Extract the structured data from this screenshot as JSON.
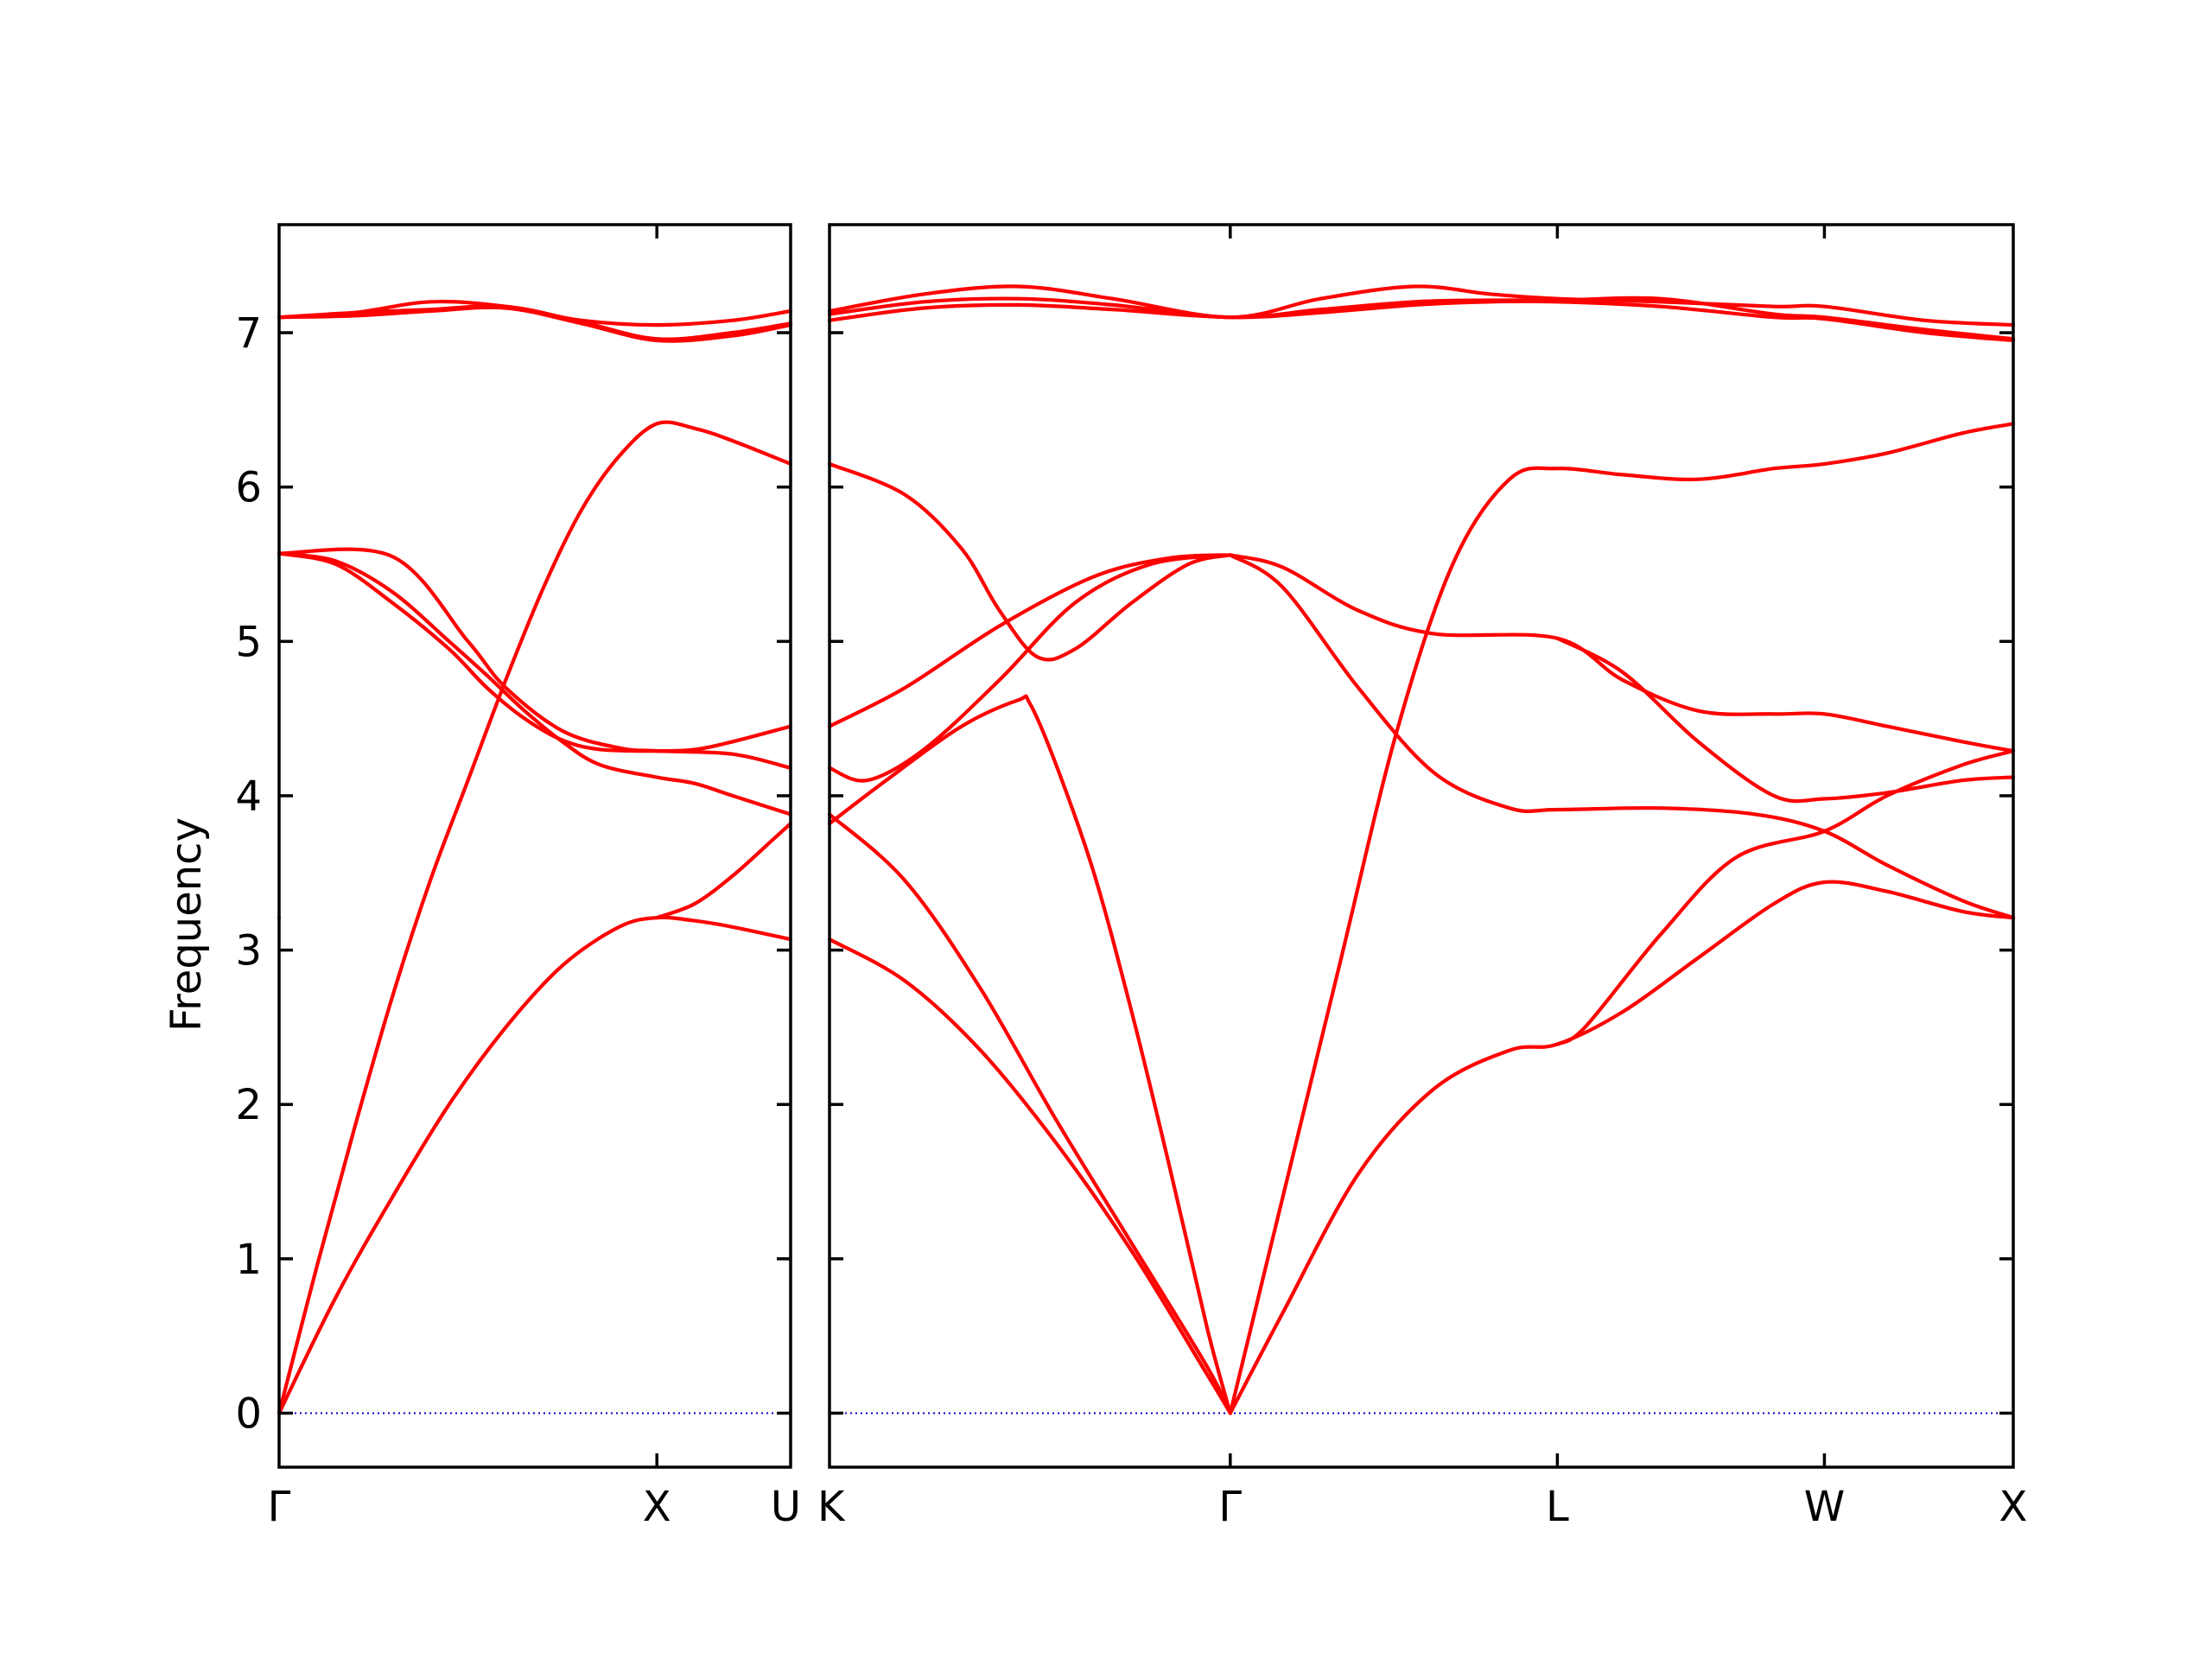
{
  "chart_data": {
    "type": "line",
    "ylabel": "Frequency",
    "ylim": [
      -0.35,
      7.7
    ],
    "yticks": [
      0,
      1,
      2,
      3,
      4,
      5,
      6,
      7
    ],
    "series_color": "#ff0000",
    "zero_line_color": "#0000cc",
    "panels": [
      {
        "xlim": [
          0,
          1.354
        ],
        "ticks": [
          {
            "x": 0,
            "label": "Γ"
          },
          {
            "x": 1.0,
            "label": "X"
          },
          {
            "x": 1.354,
            "label": "U"
          }
        ],
        "bands": [
          [
            [
              0,
              0
            ],
            [
              0.15,
              0.75
            ],
            [
              0.3,
              1.4
            ],
            [
              0.45,
              2.0
            ],
            [
              0.6,
              2.5
            ],
            [
              0.75,
              2.9
            ],
            [
              0.9,
              3.15
            ],
            [
              1.0,
              3.21
            ],
            [
              1.1,
              3.19
            ],
            [
              1.2,
              3.15
            ],
            [
              1.354,
              3.07
            ]
          ],
          [
            [
              0,
              0
            ],
            [
              0.1,
              0.95
            ],
            [
              0.2,
              1.85
            ],
            [
              0.3,
              2.7
            ],
            [
              0.4,
              3.45
            ],
            [
              0.5,
              4.1
            ],
            [
              0.6,
              4.75
            ],
            [
              0.7,
              5.35
            ],
            [
              0.8,
              5.85
            ],
            [
              0.9,
              6.2
            ],
            [
              1.0,
              6.41
            ],
            [
              1.1,
              6.38
            ],
            [
              1.2,
              6.3
            ],
            [
              1.354,
              6.15
            ]
          ],
          [
            [
              0,
              5.57
            ],
            [
              0.15,
              5.5
            ],
            [
              0.3,
              5.25
            ],
            [
              0.45,
              4.95
            ],
            [
              0.55,
              4.7
            ],
            [
              0.65,
              4.5
            ],
            [
              0.75,
              4.36
            ],
            [
              0.85,
              4.3
            ],
            [
              1.0,
              4.29
            ],
            [
              1.1,
              4.3
            ],
            [
              1.2,
              4.35
            ],
            [
              1.354,
              4.45
            ]
          ],
          [
            [
              0,
              5.57
            ],
            [
              0.15,
              5.52
            ],
            [
              0.3,
              5.32
            ],
            [
              0.45,
              5.0
            ],
            [
              0.55,
              4.78
            ],
            [
              0.65,
              4.55
            ],
            [
              0.75,
              4.35
            ],
            [
              0.85,
              4.2
            ],
            [
              1.0,
              4.12
            ],
            [
              1.1,
              4.08
            ],
            [
              1.2,
              4.0
            ],
            [
              1.354,
              3.88
            ]
          ],
          [
            [
              0,
              5.57
            ],
            [
              0.3,
              5.55
            ],
            [
              0.5,
              5.0
            ],
            [
              0.6,
              4.7
            ],
            [
              0.75,
              4.42
            ],
            [
              0.9,
              4.31
            ],
            [
              1.0,
              4.29
            ],
            [
              1.2,
              4.27
            ],
            [
              1.354,
              4.18
            ]
          ],
          [
            [
              0,
              3.21
            ],
            [
              0,
              3.21
            ]
          ],
          [
            [
              1.0,
              3.21
            ],
            [
              1.1,
              3.3
            ],
            [
              1.2,
              3.48
            ],
            [
              1.3,
              3.7
            ],
            [
              1.354,
              3.82
            ]
          ],
          [
            [
              0,
              7.1
            ],
            [
              0.2,
              7.13
            ],
            [
              0.4,
              7.2
            ],
            [
              0.6,
              7.17
            ],
            [
              0.8,
              7.08
            ],
            [
              1.0,
              7.05
            ],
            [
              1.2,
              7.08
            ],
            [
              1.354,
              7.14
            ]
          ],
          [
            [
              0,
              7.1
            ],
            [
              0.2,
              7.13
            ],
            [
              0.4,
              7.15
            ],
            [
              0.6,
              7.17
            ],
            [
              0.8,
              7.07
            ],
            [
              1.0,
              6.96
            ],
            [
              1.2,
              7.0
            ],
            [
              1.354,
              7.06
            ]
          ],
          [
            [
              0,
              7.1
            ],
            [
              0.2,
              7.11
            ],
            [
              0.4,
              7.14
            ],
            [
              0.6,
              7.16
            ],
            [
              0.8,
              7.06
            ],
            [
              1.0,
              6.95
            ],
            [
              1.2,
              6.98
            ],
            [
              1.354,
              7.05
            ]
          ]
        ]
      },
      {
        "xlim": [
          0,
          3.134
        ],
        "ticks": [
          {
            "x": 0,
            "label": "K"
          },
          {
            "x": 1.061,
            "label": "Γ"
          },
          {
            "x": 1.927,
            "label": "L"
          },
          {
            "x": 2.634,
            "label": "W"
          },
          {
            "x": 3.134,
            "label": "X"
          }
        ],
        "bands": [
          [
            [
              0,
              3.07
            ],
            [
              0.2,
              2.8
            ],
            [
              0.4,
              2.35
            ],
            [
              0.6,
              1.75
            ],
            [
              0.8,
              1.05
            ],
            [
              1.0,
              0.25
            ],
            [
              1.061,
              0
            ]
          ],
          [
            [
              0,
              3.88
            ],
            [
              0.2,
              3.45
            ],
            [
              0.4,
              2.75
            ],
            [
              0.6,
              1.9
            ],
            [
              0.8,
              1.1
            ],
            [
              1.0,
              0.3
            ],
            [
              1.061,
              0
            ]
          ],
          [
            [
              0,
              4.18
            ],
            [
              0.1,
              4.1
            ],
            [
              0.25,
              4.3
            ],
            [
              0.45,
              4.75
            ],
            [
              0.65,
              5.25
            ],
            [
              0.85,
              5.5
            ],
            [
              1.061,
              5.56
            ]
          ],
          [
            [
              0,
              4.45
            ],
            [
              0.2,
              4.7
            ],
            [
              0.45,
              5.1
            ],
            [
              0.7,
              5.42
            ],
            [
              0.9,
              5.54
            ],
            [
              1.061,
              5.56
            ]
          ],
          [
            [
              0,
              3.82
            ],
            [
              0.15,
              4.1
            ],
            [
              0.35,
              4.45
            ],
            [
              0.5,
              4.62
            ],
            [
              0.53,
              4.6
            ],
            [
              0.6,
              4.2
            ],
            [
              0.7,
              3.5
            ],
            [
              0.8,
              2.6
            ],
            [
              0.9,
              1.6
            ],
            [
              1.0,
              0.55
            ],
            [
              1.061,
              0
            ]
          ],
          [
            [
              0,
              6.15
            ],
            [
              0.2,
              5.95
            ],
            [
              0.35,
              5.6
            ],
            [
              0.45,
              5.2
            ],
            [
              0.55,
              4.9
            ],
            [
              0.65,
              4.95
            ],
            [
              0.8,
              5.25
            ],
            [
              0.95,
              5.5
            ],
            [
              1.061,
              5.56
            ]
          ],
          [
            [
              1.061,
              0
            ],
            [
              1.2,
              0.65
            ],
            [
              1.4,
              1.55
            ],
            [
              1.6,
              2.1
            ],
            [
              1.8,
              2.35
            ],
            [
              1.927,
              2.39
            ],
            [
              2.1,
              2.6
            ],
            [
              2.3,
              2.95
            ],
            [
              2.5,
              3.3
            ],
            [
              2.634,
              3.44
            ],
            [
              2.8,
              3.38
            ],
            [
              3.0,
              3.25
            ],
            [
              3.134,
              3.21
            ]
          ],
          [
            [
              1.061,
              0
            ],
            [
              1.2,
              1.4
            ],
            [
              1.35,
              2.9
            ],
            [
              1.5,
              4.4
            ],
            [
              1.65,
              5.5
            ],
            [
              1.8,
              6.05
            ],
            [
              1.927,
              6.12
            ],
            [
              2.1,
              6.08
            ],
            [
              2.3,
              6.05
            ],
            [
              2.5,
              6.12
            ],
            [
              2.634,
              6.15
            ],
            [
              2.8,
              6.22
            ],
            [
              3.0,
              6.35
            ],
            [
              3.134,
              6.41
            ]
          ],
          [
            [
              1.061,
              5.56
            ],
            [
              1.2,
              5.48
            ],
            [
              1.4,
              5.2
            ],
            [
              1.6,
              5.05
            ],
            [
              1.927,
              5.02
            ],
            [
              2.1,
              4.75
            ],
            [
              2.3,
              4.55
            ],
            [
              2.5,
              4.53
            ],
            [
              2.634,
              4.53
            ],
            [
              2.8,
              4.45
            ],
            [
              3.0,
              4.35
            ],
            [
              3.134,
              4.29
            ]
          ],
          [
            [
              1.061,
              5.56
            ],
            [
              1.2,
              5.35
            ],
            [
              1.4,
              4.7
            ],
            [
              1.6,
              4.15
            ],
            [
              1.8,
              3.92
            ],
            [
              1.927,
              3.91
            ],
            [
              2.2,
              3.92
            ],
            [
              2.45,
              3.88
            ],
            [
              2.634,
              3.77
            ],
            [
              2.8,
              3.55
            ],
            [
              3.0,
              3.32
            ],
            [
              3.134,
              3.21
            ]
          ],
          [
            [
              1.927,
              5.02
            ],
            [
              2.1,
              4.8
            ],
            [
              2.3,
              4.35
            ],
            [
              2.5,
              4.0
            ],
            [
              2.634,
              3.98
            ],
            [
              2.8,
              4.02
            ],
            [
              3.0,
              4.1
            ],
            [
              3.134,
              4.12
            ]
          ],
          [
            [
              1.927,
              2.39
            ],
            [
              2.0,
              2.5
            ],
            [
              2.2,
              3.1
            ],
            [
              2.4,
              3.6
            ],
            [
              2.634,
              3.77
            ],
            [
              2.8,
              4.0
            ],
            [
              3.0,
              4.2
            ],
            [
              3.134,
              4.29
            ]
          ],
          [
            [
              0,
              7.14
            ],
            [
              0.25,
              7.25
            ],
            [
              0.5,
              7.3
            ],
            [
              0.75,
              7.22
            ],
            [
              1.061,
              7.1
            ],
            [
              1.3,
              7.22
            ],
            [
              1.55,
              7.3
            ],
            [
              1.75,
              7.25
            ],
            [
              1.927,
              7.22
            ],
            [
              2.2,
              7.2
            ],
            [
              2.5,
              7.17
            ],
            [
              2.634,
              7.17
            ],
            [
              2.9,
              7.08
            ],
            [
              3.134,
              7.05
            ]
          ],
          [
            [
              0,
              7.12
            ],
            [
              0.25,
              7.2
            ],
            [
              0.5,
              7.22
            ],
            [
              0.75,
              7.18
            ],
            [
              1.061,
              7.1
            ],
            [
              1.3,
              7.15
            ],
            [
              1.55,
              7.2
            ],
            [
              1.75,
              7.21
            ],
            [
              1.927,
              7.21
            ],
            [
              2.2,
              7.22
            ],
            [
              2.5,
              7.12
            ],
            [
              2.634,
              7.1
            ],
            [
              2.9,
              7.02
            ],
            [
              3.134,
              6.96
            ]
          ],
          [
            [
              0,
              7.08
            ],
            [
              0.25,
              7.16
            ],
            [
              0.5,
              7.18
            ],
            [
              0.75,
              7.15
            ],
            [
              1.061,
              7.1
            ],
            [
              1.3,
              7.13
            ],
            [
              1.55,
              7.18
            ],
            [
              1.75,
              7.2
            ],
            [
              1.927,
              7.2
            ],
            [
              2.2,
              7.17
            ],
            [
              2.5,
              7.1
            ],
            [
              2.634,
              7.09
            ],
            [
              2.9,
              7.0
            ],
            [
              3.134,
              6.95
            ]
          ]
        ]
      }
    ]
  }
}
